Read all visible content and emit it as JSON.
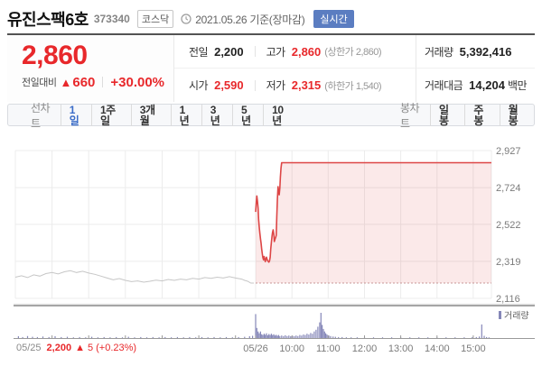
{
  "header": {
    "title": "유진스팩6호",
    "code": "373340",
    "market": "코스닥",
    "date_info": "2021.05.26 기준(장마감)",
    "realtime": "실시간"
  },
  "price_box": {
    "price": "2,860",
    "change_label": "전일대비",
    "arrow": "▲",
    "change_value": "660",
    "change_pct": "+30.00%"
  },
  "summary": {
    "prev": {
      "label": "전일",
      "value": "2,200"
    },
    "high": {
      "label": "고가",
      "value": "2,860",
      "extra": "(상한가 2,860)"
    },
    "open": {
      "label": "시가",
      "value": "2,590"
    },
    "low": {
      "label": "저가",
      "value": "2,315",
      "extra": "(하한가 1,540)"
    },
    "volume": {
      "label": "거래량",
      "value": "5,392,416"
    },
    "amount": {
      "label": "거래대금",
      "value": "14,204",
      "unit": "백만"
    }
  },
  "chart_tabs": {
    "line_label": "선차트",
    "line_items": [
      "1일",
      "1주일",
      "3개월",
      "1년",
      "3년",
      "5년",
      "10년"
    ],
    "selected": "1일",
    "candle_label": "봉차트",
    "candle_items": [
      "일봉",
      "주봉",
      "월봉"
    ]
  },
  "colors": {
    "up_red": "#e8282b",
    "line_red": "#dd4646",
    "area_pink": "rgba(221,70,70,0.12)",
    "prev_day_gray": "#c6c6c6",
    "volume_purple": "#8587b8",
    "selected_blue": "#3a6cc8",
    "realtime_badge_blue": "#5b7dc1"
  },
  "chart_data": {
    "type": "line",
    "ylim": [
      2116,
      2927
    ],
    "y_ticks": [
      {
        "value": 2927,
        "label": "2,927"
      },
      {
        "value": 2724,
        "label": "2,724"
      },
      {
        "value": 2522,
        "label": "2,522"
      },
      {
        "value": 2319,
        "label": "2,319"
      },
      {
        "value": 2116,
        "label": "2,116"
      }
    ],
    "x_ticks": [
      {
        "minute": 0,
        "label": "05/26"
      },
      {
        "minute": 60,
        "label": "10:00"
      },
      {
        "minute": 120,
        "label": "11:00"
      },
      {
        "minute": 180,
        "label": "12:00"
      },
      {
        "minute": 240,
        "label": "13:00"
      },
      {
        "minute": 300,
        "label": "14:00"
      },
      {
        "minute": 360,
        "label": "15:00"
      }
    ],
    "prev_day_grid_minutes": [
      60,
      120,
      180,
      240,
      300,
      360
    ],
    "prev_close": 2200,
    "upper_limit": 2860,
    "series": [
      {
        "name": "05/25",
        "color": "#c6c6c6",
        "fill": "none",
        "day": 0,
        "points": [
          [
            0,
            2232
          ],
          [
            10,
            2240
          ],
          [
            20,
            2230
          ],
          [
            30,
            2245
          ],
          [
            40,
            2238
          ],
          [
            50,
            2252
          ],
          [
            60,
            2258
          ],
          [
            70,
            2250
          ],
          [
            80,
            2262
          ],
          [
            90,
            2268
          ],
          [
            100,
            2258
          ],
          [
            110,
            2265
          ],
          [
            120,
            2255
          ],
          [
            130,
            2248
          ],
          [
            140,
            2238
          ],
          [
            150,
            2228
          ],
          [
            160,
            2218
          ],
          [
            170,
            2225
          ],
          [
            180,
            2215
          ],
          [
            190,
            2208
          ],
          [
            200,
            2212
          ],
          [
            210,
            2205
          ],
          [
            220,
            2210
          ],
          [
            230,
            2216
          ],
          [
            240,
            2212
          ],
          [
            250,
            2220
          ],
          [
            260,
            2215
          ],
          [
            270,
            2222
          ],
          [
            280,
            2218
          ],
          [
            290,
            2226
          ],
          [
            300,
            2222
          ],
          [
            310,
            2230
          ],
          [
            320,
            2226
          ],
          [
            330,
            2232
          ],
          [
            340,
            2228
          ],
          [
            350,
            2235
          ],
          [
            360,
            2228
          ],
          [
            370,
            2222
          ],
          [
            375,
            2215
          ],
          [
            380,
            2210
          ],
          [
            385,
            2200
          ],
          [
            390,
            2200
          ]
        ]
      },
      {
        "name": "05/26",
        "color": "#dd4646",
        "fill": "rgba(221,70,70,0.12)",
        "day": 1,
        "points": [
          [
            0,
            2590
          ],
          [
            1,
            2642
          ],
          [
            2,
            2678
          ],
          [
            3,
            2650
          ],
          [
            4,
            2612
          ],
          [
            5,
            2548
          ],
          [
            6,
            2506
          ],
          [
            7,
            2472
          ],
          [
            8,
            2442
          ],
          [
            9,
            2420
          ],
          [
            10,
            2386
          ],
          [
            11,
            2360
          ],
          [
            12,
            2340
          ],
          [
            13,
            2328
          ],
          [
            14,
            2346
          ],
          [
            15,
            2330
          ],
          [
            16,
            2318
          ],
          [
            17,
            2334
          ],
          [
            18,
            2342
          ],
          [
            19,
            2330
          ],
          [
            20,
            2322
          ],
          [
            22,
            2315
          ],
          [
            23,
            2322
          ],
          [
            24,
            2342
          ],
          [
            25,
            2386
          ],
          [
            26,
            2422
          ],
          [
            27,
            2456
          ],
          [
            28,
            2478
          ],
          [
            29,
            2492
          ],
          [
            30,
            2468
          ],
          [
            31,
            2428
          ],
          [
            32,
            2440
          ],
          [
            33,
            2450
          ],
          [
            34,
            2462
          ],
          [
            35,
            2562
          ],
          [
            36,
            2662
          ],
          [
            37,
            2729
          ],
          [
            38,
            2702
          ],
          [
            39,
            2684
          ],
          [
            40,
            2722
          ],
          [
            41,
            2782
          ],
          [
            42,
            2832
          ],
          [
            43,
            2860
          ],
          [
            390,
            2860
          ]
        ]
      }
    ],
    "volume_color": "#8587b8",
    "volume_legend": "거래량",
    "volume": [
      {
        "day": 0,
        "bars": [
          [
            5,
            7
          ],
          [
            12,
            4
          ],
          [
            20,
            8
          ],
          [
            28,
            5
          ],
          [
            36,
            4
          ],
          [
            45,
            6
          ],
          [
            55,
            4
          ],
          [
            65,
            7
          ],
          [
            75,
            4
          ],
          [
            85,
            5
          ],
          [
            95,
            3
          ],
          [
            105,
            4
          ],
          [
            115,
            3
          ],
          [
            125,
            5
          ],
          [
            135,
            3
          ],
          [
            145,
            4
          ],
          [
            155,
            3
          ],
          [
            165,
            4
          ],
          [
            175,
            3
          ],
          [
            185,
            5
          ],
          [
            195,
            3
          ],
          [
            205,
            4
          ],
          [
            215,
            3
          ],
          [
            225,
            4
          ],
          [
            235,
            3
          ],
          [
            245,
            4
          ],
          [
            255,
            3
          ],
          [
            265,
            4
          ],
          [
            275,
            3
          ],
          [
            285,
            4
          ],
          [
            295,
            3
          ],
          [
            305,
            4
          ],
          [
            315,
            3
          ],
          [
            325,
            4
          ],
          [
            335,
            3
          ],
          [
            345,
            4
          ],
          [
            355,
            3
          ],
          [
            365,
            4
          ],
          [
            375,
            5
          ],
          [
            383,
            7
          ],
          [
            388,
            9
          ]
        ]
      },
      {
        "day": 1,
        "bars": [
          [
            0,
            95
          ],
          [
            2,
            40
          ],
          [
            4,
            26
          ],
          [
            6,
            19
          ],
          [
            8,
            26
          ],
          [
            10,
            15
          ],
          [
            12,
            12
          ],
          [
            14,
            17
          ],
          [
            16,
            13
          ],
          [
            18,
            19
          ],
          [
            20,
            11
          ],
          [
            22,
            16
          ],
          [
            24,
            12
          ],
          [
            26,
            17
          ],
          [
            28,
            12
          ],
          [
            30,
            15
          ],
          [
            32,
            10
          ],
          [
            34,
            13
          ],
          [
            36,
            9
          ],
          [
            38,
            12
          ],
          [
            40,
            8
          ],
          [
            43,
            10
          ],
          [
            46,
            8
          ],
          [
            49,
            11
          ],
          [
            52,
            8
          ],
          [
            55,
            10
          ],
          [
            58,
            7
          ],
          [
            61,
            9
          ],
          [
            64,
            7
          ],
          [
            67,
            10
          ],
          [
            70,
            8
          ],
          [
            73,
            12
          ],
          [
            76,
            10
          ],
          [
            79,
            14
          ],
          [
            82,
            12
          ],
          [
            85,
            17
          ],
          [
            88,
            14
          ],
          [
            91,
            20
          ],
          [
            94,
            17
          ],
          [
            97,
            26
          ],
          [
            100,
            33
          ],
          [
            103,
            45
          ],
          [
            106,
            62
          ],
          [
            108,
            100
          ],
          [
            110,
            52
          ],
          [
            112,
            36
          ],
          [
            114,
            26
          ],
          [
            116,
            19
          ],
          [
            118,
            14
          ],
          [
            121,
            10
          ],
          [
            124,
            8
          ],
          [
            128,
            6
          ],
          [
            132,
            5
          ],
          [
            137,
            4
          ],
          [
            143,
            4
          ],
          [
            150,
            3
          ],
          [
            158,
            3
          ],
          [
            168,
            3
          ],
          [
            180,
            3
          ],
          [
            195,
            3
          ],
          [
            210,
            3
          ],
          [
            225,
            3
          ],
          [
            240,
            3
          ],
          [
            255,
            3
          ],
          [
            270,
            3
          ],
          [
            285,
            3
          ],
          [
            300,
            3
          ],
          [
            315,
            3
          ],
          [
            330,
            3
          ],
          [
            345,
            3
          ],
          [
            358,
            3
          ],
          [
            365,
            4
          ],
          [
            370,
            6
          ],
          [
            374,
            54
          ],
          [
            378,
            9
          ],
          [
            382,
            4
          ],
          [
            386,
            3
          ]
        ]
      }
    ],
    "footer": {
      "date": "05/25",
      "close": "2,200",
      "change": "▲ 5",
      "pct": "(+0.23%)"
    }
  }
}
